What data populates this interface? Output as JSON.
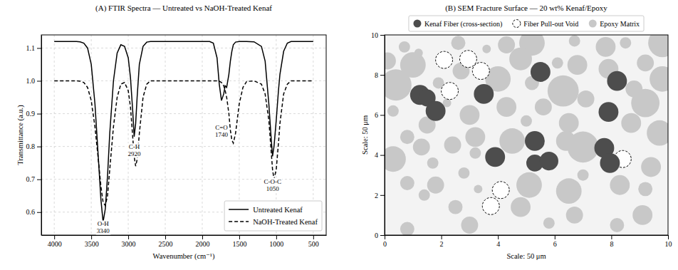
{
  "chart_data": [
    {
      "type": "line",
      "title": "(A) FTIR Spectra — Untreated vs NaOH-Treated Kenaf",
      "x_label": "Wavenumber (cm⁻¹)",
      "y_label": "Transmittance (a.u.)",
      "x": [
        4000,
        3900,
        3800,
        3700,
        3650,
        3600,
        3550,
        3500,
        3450,
        3400,
        3370,
        3340,
        3310,
        3280,
        3250,
        3200,
        3150,
        3100,
        3050,
        3000,
        2970,
        2940,
        2920,
        2900,
        2880,
        2850,
        2800,
        2750,
        2700,
        2500,
        2300,
        2100,
        2000,
        1900,
        1850,
        1800,
        1770,
        1740,
        1710,
        1690,
        1670,
        1640,
        1620,
        1600,
        1580,
        1550,
        1500,
        1450,
        1400,
        1300,
        1200,
        1150,
        1100,
        1070,
        1050,
        1030,
        1000,
        970,
        950,
        900,
        850,
        800,
        700,
        600,
        500
      ],
      "series": [
        {
          "name": "Untreated Kenaf",
          "color": "#000000",
          "line_style": "solid",
          "values": [
            1.12,
            1.12,
            1.12,
            1.12,
            1.119,
            1.115,
            1.1,
            1.05,
            0.93,
            0.75,
            0.64,
            0.57,
            0.61,
            0.71,
            0.84,
            1.0,
            1.085,
            1.11,
            1.105,
            1.07,
            1.01,
            0.91,
            0.83,
            0.87,
            0.95,
            1.05,
            1.105,
            1.118,
            1.12,
            1.12,
            1.12,
            1.12,
            1.12,
            1.12,
            1.115,
            1.07,
            0.99,
            0.94,
            0.96,
            0.985,
            0.98,
            1.02,
            1.06,
            1.09,
            1.11,
            1.118,
            1.12,
            1.12,
            1.12,
            1.119,
            1.105,
            1.06,
            0.93,
            0.83,
            0.77,
            0.8,
            0.88,
            0.97,
            1.02,
            1.09,
            1.115,
            1.12,
            1.12,
            1.12,
            1.12
          ]
        },
        {
          "name": "NaOH-Treated Kenaf",
          "color": "#000000",
          "line_style": "dashed",
          "values": [
            1.0,
            1.0,
            1.0,
            1.0,
            0.999,
            0.995,
            0.98,
            0.94,
            0.86,
            0.75,
            0.68,
            0.63,
            0.62,
            0.65,
            0.73,
            0.86,
            0.95,
            0.99,
            0.995,
            0.97,
            0.92,
            0.83,
            0.77,
            0.74,
            0.76,
            0.84,
            0.95,
            0.99,
            1.0,
            1.0,
            1.0,
            1.0,
            1.0,
            1.0,
            1.0,
            1.0,
            0.999,
            0.995,
            0.985,
            0.97,
            0.95,
            0.9,
            0.85,
            0.82,
            0.81,
            0.84,
            0.93,
            0.98,
            0.998,
            1.0,
            0.99,
            0.96,
            0.88,
            0.79,
            0.73,
            0.7,
            0.73,
            0.81,
            0.87,
            0.96,
            0.99,
            1.0,
            1.0,
            1.0,
            1.0
          ]
        }
      ],
      "xlim": [
        4175,
        325
      ],
      "ylim": [
        0.53,
        1.14
      ],
      "xticks": [
        4000,
        3500,
        3000,
        2500,
        2000,
        1500,
        1000,
        500
      ],
      "yticks": [
        0.6,
        0.7,
        0.8,
        0.9,
        {
          "value": 1,
          "label": "1.0"
        },
        1.1
      ],
      "grid": true,
      "legend": "lower right",
      "annotations": [
        {
          "text": "O-H",
          "x": 3340,
          "y": 0.555
        },
        {
          "text": "C-H",
          "x": 2920,
          "y": 0.79
        },
        {
          "text": "C=O",
          "x": 1740,
          "y": 0.85
        },
        {
          "text": "C-O-C",
          "x": 1050,
          "y": 0.685
        }
      ]
    },
    {
      "type": "scatter",
      "title": "(B) SEM Fracture Surface — 20 wt% Kenaf/Epoxy",
      "x_label": "Scale: 50 μm",
      "y_label": "Scale: 50 μm",
      "xlim": [
        0,
        10
      ],
      "ylim": [
        0,
        10
      ],
      "xticks": [
        0,
        2,
        4,
        6,
        8,
        10
      ],
      "yticks": [
        0,
        2,
        4,
        6,
        8,
        10
      ],
      "grid": false,
      "legend": "top",
      "series": [
        {
          "name": "Kenaf Fiber (cross-section)",
          "color": "#4d4d4d",
          "marker": "circle",
          "x": [
            1.25,
            1.5,
            1.8,
            3.5,
            5.5,
            8.2,
            7.9,
            5.3,
            3.9,
            5.3,
            5.8,
            7.75,
            7.95
          ],
          "values": [
            7.0,
            6.85,
            6.2,
            7.05,
            8.15,
            7.7,
            6.15,
            4.7,
            3.9,
            3.6,
            3.7,
            4.35,
            3.6
          ],
          "sizes": [
            0.35,
            0.3,
            0.35,
            0.35,
            0.35,
            0.35,
            0.35,
            0.35,
            0.35,
            0.3,
            0.33,
            0.35,
            0.35
          ]
        },
        {
          "name": "Fiber Pull-out Void",
          "color": "#ffffff",
          "marker": "circle",
          "line_style": "dashed",
          "x": [
            2.1,
            2.95,
            3.4,
            2.3,
            8.4,
            4.1,
            3.75
          ],
          "values": [
            8.75,
            8.8,
            8.2,
            7.2,
            3.8,
            2.25,
            1.45
          ],
          "sizes": [
            0.3,
            0.3,
            0.3,
            0.3,
            0.3,
            0.3,
            0.3
          ]
        },
        {
          "name": "Epoxy Matrix",
          "color": "#c8c8c8",
          "marker": "circle",
          "x": [
            0.4,
            1.0,
            0.1,
            0.7,
            2.6,
            3.6,
            4.3,
            5.2,
            6.7,
            7.8,
            8.5,
            9.8,
            1.2,
            4.8,
            6.8,
            7.9,
            9.2,
            6.1,
            4.0,
            2.7,
            1.9,
            6.3,
            5.2,
            8.8,
            9.8,
            7.1,
            2.2,
            4.3,
            3.0,
            5.6,
            0.3,
            9.2,
            8.7,
            6.5,
            5.0,
            1.5,
            0.8,
            3.2,
            2.4,
            1.3,
            3.2,
            4.5,
            6.4,
            7.0,
            9.7,
            9.4,
            0.3,
            1.7,
            2.8,
            0.8,
            1.8,
            3.3,
            5.1,
            6.5,
            7.0,
            8.3,
            9.2,
            2.5,
            4.8,
            6.7,
            0.8,
            3.0,
            5.8,
            9.1,
            8.2,
            1.4
          ],
          "values": [
            7.5,
            8.5,
            8.7,
            9.4,
            9.6,
            9.3,
            9.5,
            9.6,
            9.7,
            9.4,
            9.6,
            9.6,
            9.1,
            8.8,
            8.5,
            8.3,
            8.6,
            8.6,
            7.8,
            8.2,
            7.6,
            7.2,
            7.6,
            7.3,
            7.8,
            6.8,
            6.6,
            6.4,
            6.0,
            6.4,
            6.2,
            6.6,
            5.6,
            5.6,
            5.7,
            5.5,
            4.9,
            4.9,
            4.5,
            4.4,
            4.1,
            4.7,
            4.7,
            4.4,
            5.1,
            3.4,
            3.8,
            3.6,
            3.1,
            2.6,
            2.5,
            2.3,
            2.5,
            2.2,
            3.0,
            2.5,
            2.3,
            1.4,
            1.4,
            1.0,
            0.3,
            0.5,
            0.6,
            1.0,
            0.5,
            2.0
          ],
          "sizes": [
            0.55,
            0.45,
            0.3,
            0.2,
            0.25,
            0.15,
            0.3,
            0.45,
            0.2,
            0.35,
            0.2,
            0.5,
            0.15,
            0.4,
            0.35,
            0.35,
            0.3,
            0.2,
            0.45,
            0.3,
            0.2,
            0.55,
            0.25,
            0.3,
            0.45,
            0.3,
            0.15,
            0.35,
            0.35,
            0.3,
            0.2,
            0.5,
            0.35,
            0.35,
            0.2,
            0.3,
            0.25,
            0.35,
            0.3,
            0.3,
            0.2,
            0.45,
            0.35,
            0.55,
            0.45,
            0.35,
            0.45,
            0.2,
            0.2,
            0.25,
            0.3,
            0.15,
            0.45,
            0.45,
            0.2,
            0.35,
            0.25,
            0.25,
            0.35,
            0.3,
            0.25,
            0.3,
            0.2,
            0.35,
            0.25,
            0.2
          ]
        }
      ]
    }
  ]
}
